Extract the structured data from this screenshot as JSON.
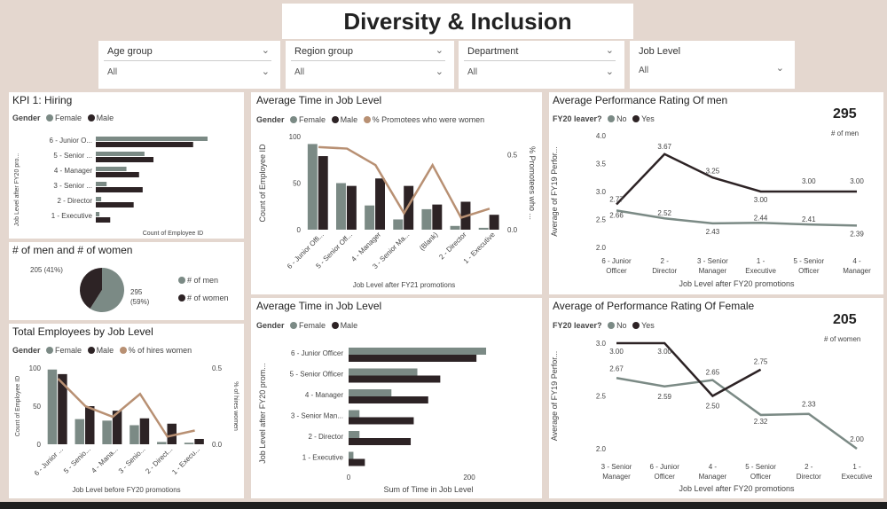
{
  "title": "Diversity & Inclusion",
  "filters": [
    {
      "label": "Age group",
      "value": "All"
    },
    {
      "label": "Region group",
      "value": "All"
    },
    {
      "label": "Department",
      "value": "All"
    },
    {
      "label": "Job Level",
      "value": "All"
    }
  ],
  "colors": {
    "female": "#7b8a85",
    "male": "#2d2325",
    "promo": "#b89073",
    "bg": "#e4d7cf"
  },
  "kpi1": {
    "title": "KPI 1: Hiring",
    "legend_title": "Gender",
    "legend_female": "Female",
    "legend_male": "Male",
    "ylabel": "Job Level after FY20 pro...",
    "xlabel": "Count of Employee ID",
    "chart_data": {
      "type": "bar",
      "categories": [
        "6 - Junior O...",
        "5 - Senior ...",
        "4 - Manager",
        "3 - Senior ...",
        "2 - Director",
        "1 - Executive"
      ],
      "series": [
        {
          "name": "Female",
          "values": [
            62,
            27,
            17,
            6,
            3,
            2
          ]
        },
        {
          "name": "Male",
          "values": [
            54,
            32,
            24,
            26,
            21,
            8
          ]
        }
      ]
    }
  },
  "menwomen": {
    "title": "# of men and # of women",
    "label_women": "205 (41%)",
    "label_men_val": "295",
    "label_men_pct": "(59%)",
    "legend_men": "# of men",
    "legend_women": "# of women",
    "chart_data": {
      "type": "pie",
      "labels": [
        "# of men",
        "# of women"
      ],
      "values": [
        295,
        205
      ]
    }
  },
  "total": {
    "title": "Total Employees by Job Level",
    "legend_title": "Gender",
    "legend_female": "Female",
    "legend_male": "Male",
    "legend_pct": "% of hires women",
    "ylabel": "Count of Employee ID",
    "y2label": "% of hires women",
    "xlabel": "Job Level before FY20 promotions",
    "yticks": [
      "100",
      "50",
      "0"
    ],
    "y2ticks": [
      "0.5",
      "0.0"
    ],
    "chart_data": {
      "type": "bar",
      "categories": [
        "6 - Junior ...",
        "5 - Senio...",
        "4 - Mana...",
        "3 - Senio...",
        "2 - Direct...",
        "1 - Execu..."
      ],
      "ylim": [
        0,
        100
      ],
      "series": [
        {
          "name": "Female",
          "values": [
            98,
            33,
            31,
            25,
            3,
            2
          ]
        },
        {
          "name": "Male",
          "values": [
            92,
            50,
            44,
            34,
            27,
            7
          ]
        },
        {
          "name": "% of hires women",
          "values": [
            0.43,
            0.25,
            0.18,
            0.33,
            0.05,
            0.09
          ]
        }
      ]
    }
  },
  "avgtime1": {
    "title": "Average Time in Job Level",
    "legend_title": "Gender",
    "legend_female": "Female",
    "legend_male": "Male",
    "legend_pct": "% Promotees who were women",
    "ylabel": "Count of Employee ID",
    "y2label": "% Promotees who ...",
    "xlabel": "Job Level after FY21 promotions",
    "yticks": [
      "100",
      "50",
      "0"
    ],
    "y2ticks": [
      "0.5",
      "0.0"
    ],
    "chart_data": {
      "type": "bar",
      "categories": [
        "6 - Junior Offi...",
        "5 - Senior Off...",
        "4 - Manager",
        "3 - Senior Ma...",
        "(Blank)",
        "2 - Director",
        "1 - Executive"
      ],
      "ylim": [
        0,
        100
      ],
      "series": [
        {
          "name": "Female",
          "values": [
            92,
            50,
            26,
            11,
            22,
            4,
            2
          ]
        },
        {
          "name": "Male",
          "values": [
            79,
            47,
            55,
            47,
            27,
            30,
            16
          ]
        },
        {
          "name": "% Promotees who were women",
          "values": [
            0.55,
            0.54,
            0.43,
            0.11,
            0.43,
            0.08,
            0.14
          ]
        }
      ]
    }
  },
  "avgtime2": {
    "title": "Average Time in Job Level",
    "legend_title": "Gender",
    "legend_female": "Female",
    "legend_male": "Male",
    "ylabel": "Job Level after FY20 prom...",
    "xlabel": "Sum of Time in Job Level",
    "xticks": [
      "0",
      "200"
    ],
    "chart_data": {
      "type": "bar",
      "categories": [
        "6 - Junior Officer",
        "5 - Senior Officer",
        "4 - Manager",
        "3 - Senior Man...",
        "2 - Director",
        "1 - Executive"
      ],
      "xlim": [
        0,
        250
      ],
      "series": [
        {
          "name": "Female",
          "values": [
            228,
            114,
            71,
            18,
            18,
            8
          ]
        },
        {
          "name": "Male",
          "values": [
            212,
            152,
            132,
            108,
            103,
            27
          ]
        }
      ]
    }
  },
  "perfmen": {
    "title": "Average Performance Rating Of men",
    "legend_title": "FY20 leaver?",
    "legend_no": "No",
    "legend_yes": "Yes",
    "bigval": "295",
    "subval": "# of men",
    "ylabel": "Average of FY19 Perfor...",
    "xlabel": "Job Level after FY20 promotions",
    "yticks": [
      "4.0",
      "3.5",
      "3.0",
      "2.5",
      "2.0"
    ],
    "xcats": [
      [
        "6 - Junior",
        "Officer"
      ],
      [
        "2 -",
        "Director"
      ],
      [
        "3 - Senior",
        "Manager"
      ],
      [
        "1 -",
        "Executive"
      ],
      [
        "5 - Senior",
        "Officer"
      ],
      [
        "4 -",
        "Manager"
      ]
    ],
    "chart_data": {
      "type": "line",
      "categories": [
        "6 - Junior Officer",
        "2 - Director",
        "3 - Senior Manager",
        "1 - Executive",
        "5 - Senior Officer",
        "4 - Manager"
      ],
      "ylim": [
        2.0,
        4.0
      ],
      "series": [
        {
          "name": "No",
          "values": [
            2.66,
            2.52,
            2.43,
            2.44,
            2.41,
            2.39
          ]
        },
        {
          "name": "Yes",
          "values": [
            2.77,
            3.67,
            3.25,
            3.0,
            3.0,
            3.0
          ]
        }
      ],
      "labels_no": [
        "2.66",
        "2.52",
        "2.43",
        "2.44",
        "2.41",
        "2.39"
      ],
      "labels_yes": [
        "2.77",
        "3.67",
        "3.25",
        "3.00",
        "3.00",
        "3.00"
      ]
    }
  },
  "perffem": {
    "title": "Average of Performance Rating Of Female",
    "legend_title": "FY20 leaver?",
    "legend_no": "No",
    "legend_yes": "Yes",
    "bigval": "205",
    "subval": "# of women",
    "ylabel": "Average of FY19 Perfor...",
    "xlabel": "Job Level after FY20 promotions",
    "yticks": [
      "3.0",
      "2.5",
      "2.0"
    ],
    "xcats": [
      [
        "3 - Senior",
        "Manager"
      ],
      [
        "6 - Junior",
        "Officer"
      ],
      [
        "4 -",
        "Manager"
      ],
      [
        "5 - Senior",
        "Officer"
      ],
      [
        "2 -",
        "Director"
      ],
      [
        "1 -",
        "Executive"
      ]
    ],
    "chart_data": {
      "type": "line",
      "categories": [
        "3 - Senior Manager",
        "6 - Junior Officer",
        "4 - Manager",
        "5 - Senior Officer",
        "2 - Director",
        "1 - Executive"
      ],
      "ylim": [
        1.95,
        3.05
      ],
      "series": [
        {
          "name": "No",
          "values": [
            2.67,
            2.59,
            2.65,
            2.32,
            2.33,
            2.0
          ]
        },
        {
          "name": "Yes",
          "values": [
            3.0,
            3.0,
            2.5,
            2.75,
            null,
            null
          ]
        }
      ],
      "labels_no": [
        "2.67",
        "2.59",
        "2.65",
        "2.32",
        "2.33",
        "2.00"
      ],
      "labels_yes": [
        "3.00",
        "3.00",
        "2.50",
        "2.75",
        "",
        ""
      ]
    }
  }
}
